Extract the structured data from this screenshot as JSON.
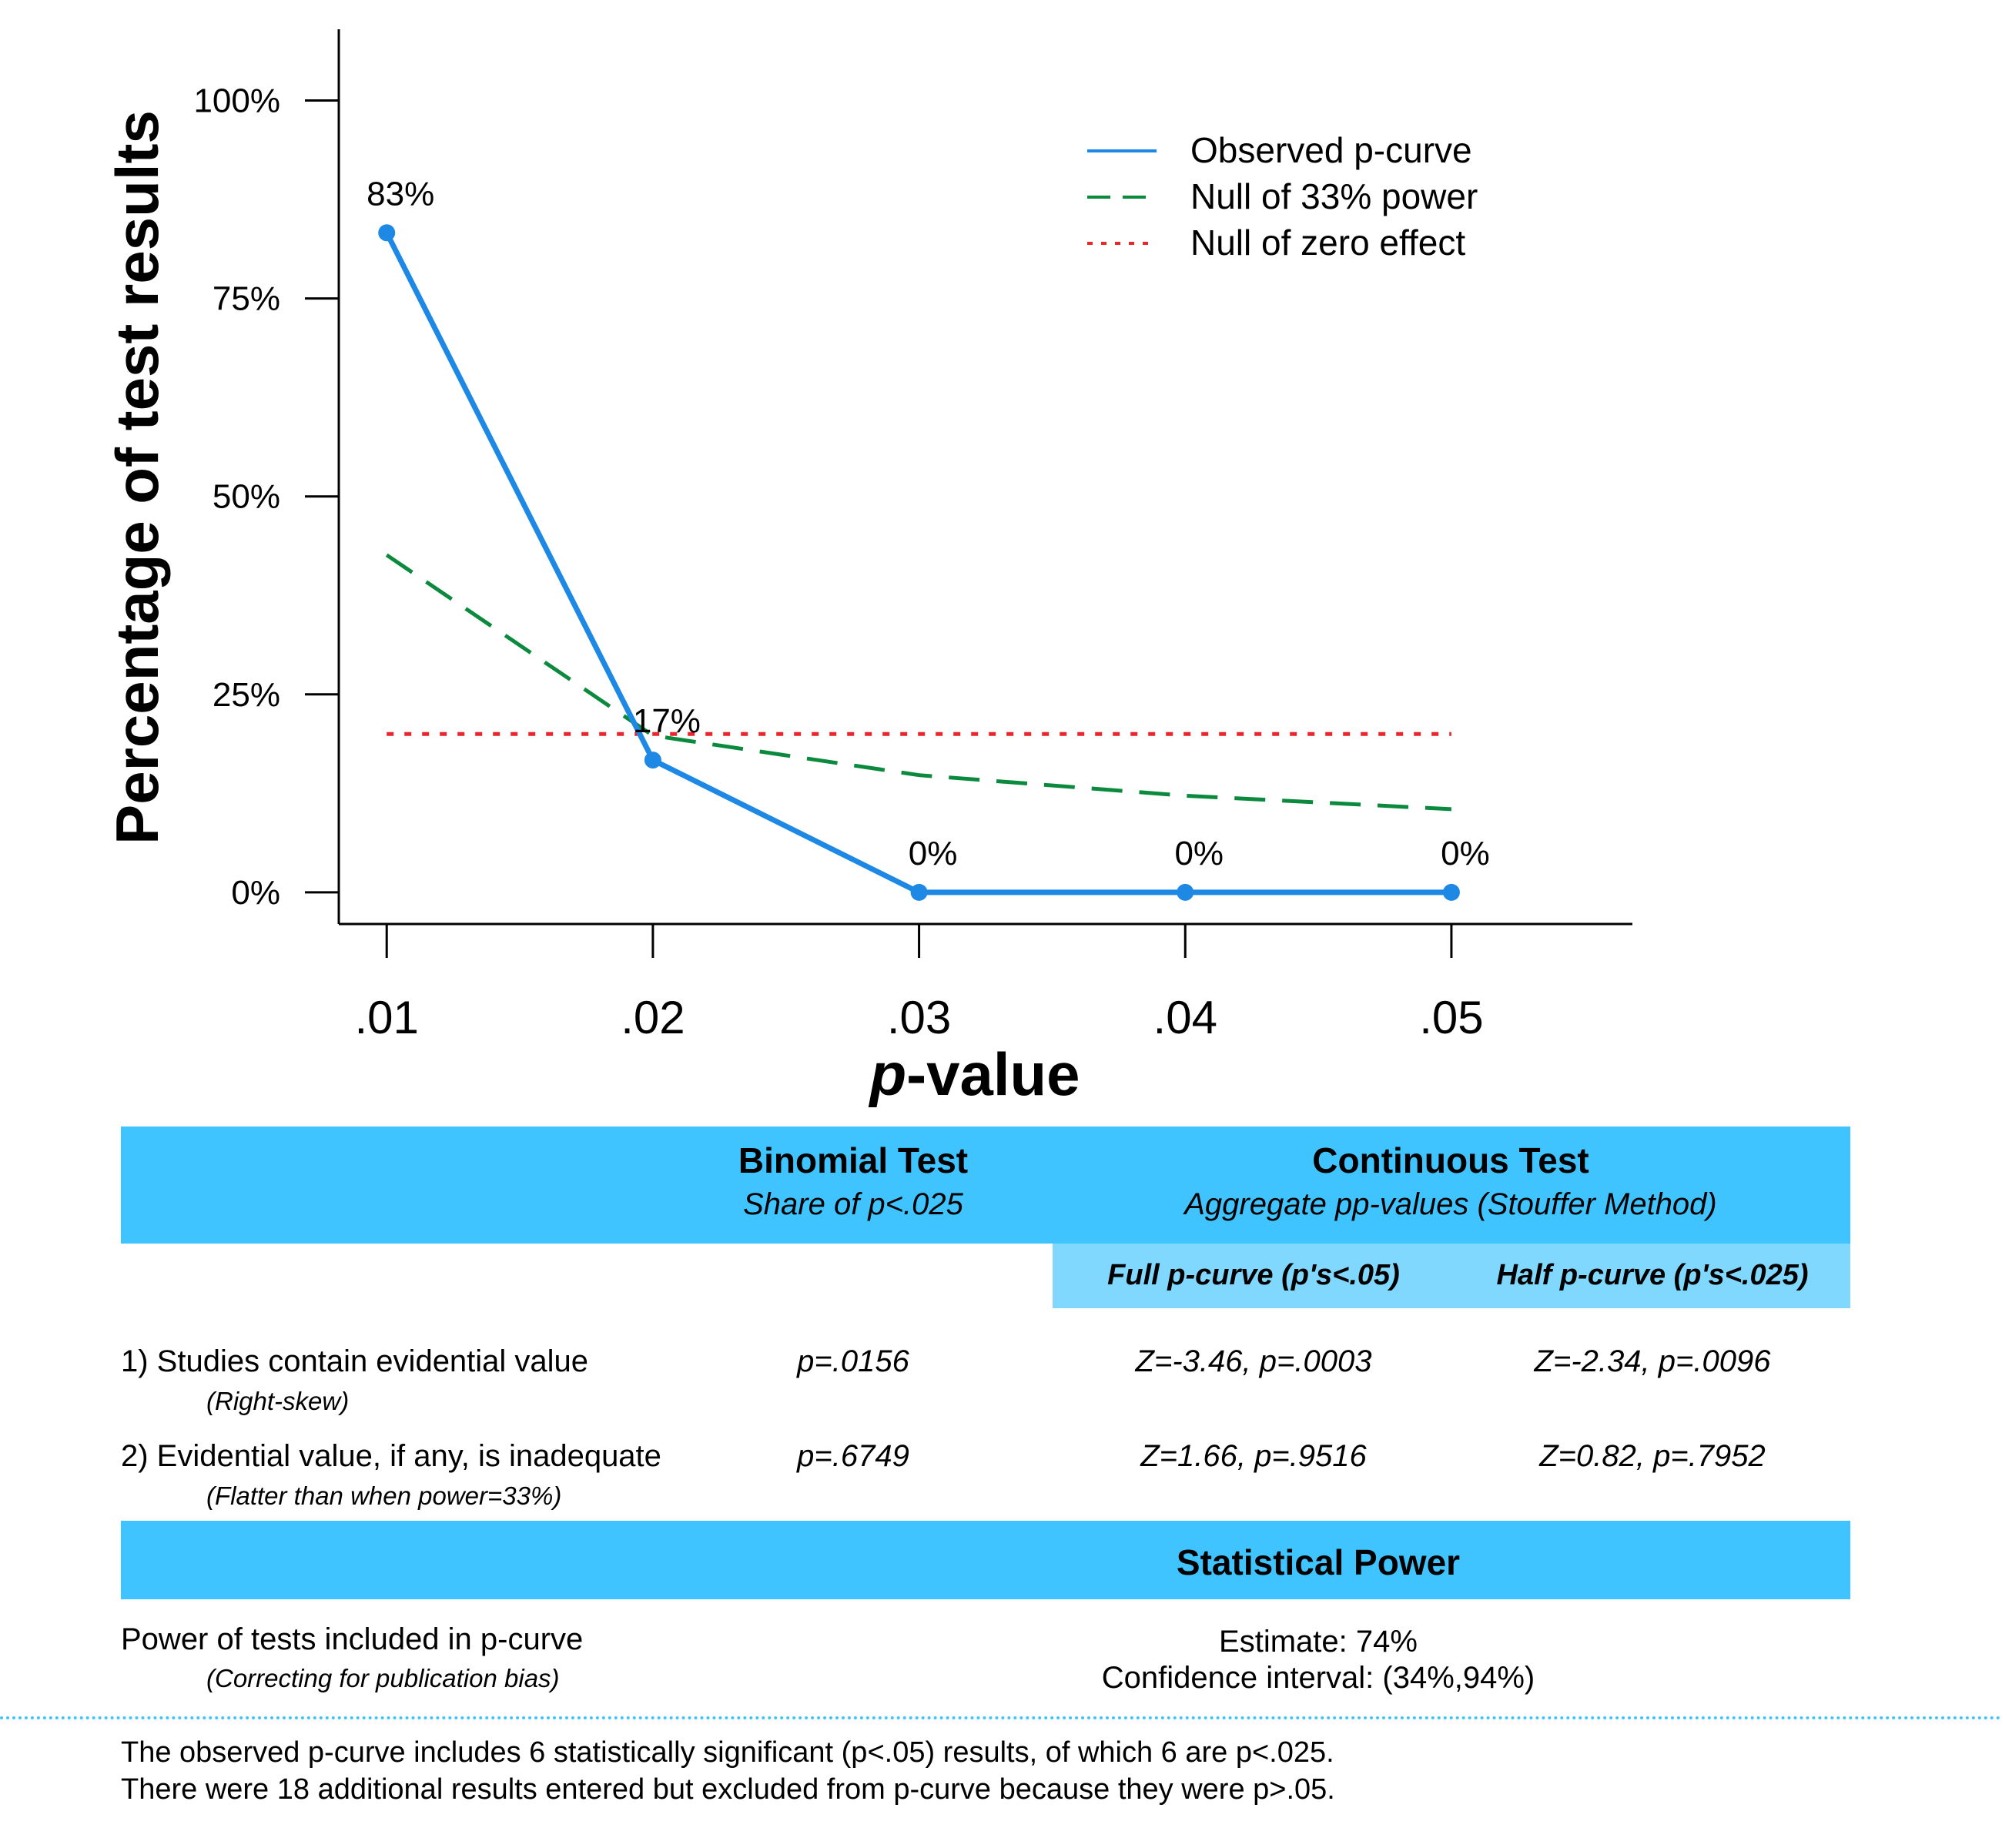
{
  "chart_data": {
    "type": "line",
    "ylabel": "Percentage of test results",
    "xlabel_italic": "p",
    "xlabel_rest": "-value",
    "x": [
      0.01,
      0.02,
      0.03,
      0.04,
      0.05
    ],
    "x_tick_labels": [
      ".01",
      ".02",
      ".03",
      ".04",
      ".05"
    ],
    "y_ticks": [
      0,
      25,
      50,
      75,
      100
    ],
    "y_tick_labels": [
      "0%",
      "25%",
      "50%",
      "75%",
      "100%"
    ],
    "ylim": [
      -4,
      109
    ],
    "xlim": [
      0.0082,
      0.0568
    ],
    "grid": false,
    "legend_position": "top-right",
    "series": [
      {
        "name": "Observed p-curve",
        "values": [
          83.3,
          16.7,
          0,
          0,
          0
        ],
        "point_labels": [
          "83%",
          "17%",
          "0%",
          "0%",
          "0%"
        ],
        "color": "#1E88E5",
        "style": "solid",
        "markers": true
      },
      {
        "name": "Null of 33% power",
        "values": [
          42.6,
          19.8,
          14.8,
          12.2,
          10.5
        ],
        "color": "#0B8A3E",
        "style": "dashed",
        "markers": false
      },
      {
        "name": "Null of zero effect",
        "values": [
          20,
          20,
          20,
          20,
          20
        ],
        "color": "#E8262B",
        "style": "dotted",
        "markers": false
      }
    ]
  },
  "table": {
    "binomial_title": "Binomial Test",
    "binomial_sub": "Share of p<.025",
    "continuous_title": "Continuous Test",
    "continuous_sub": "Aggregate pp-values (Stouffer Method)",
    "full_header": "Full p-curve (p's<.05)",
    "half_header": "Half p-curve (p's<.025)",
    "rows": [
      {
        "label": "1) Studies contain evidential value",
        "note": "(Right-skew)",
        "binomial": "p=.0156",
        "full": "Z=-3.46, p=.0003",
        "half": "Z=-2.34, p=.0096"
      },
      {
        "label": "2) Evidential value, if any, is inadequate",
        "note": "(Flatter than when power=33%)",
        "binomial": "p=.6749",
        "full": "Z=1.66, p=.9516",
        "half": "Z=0.82, p=.7952"
      }
    ],
    "power_title": "Statistical Power",
    "power_label": "Power of tests included in p-curve",
    "power_note": "(Correcting for publication bias)",
    "power_estimate": "Estimate: 74%",
    "power_ci": "Confidence interval: (34%,94%)"
  },
  "footer": {
    "line1": "The observed p-curve includes 6 statistically significant (p<.05) results, of which 6 are p<.025.",
    "line2": "There were 18 additional results entered but excluded from p-curve because they were p>.05."
  },
  "colors": {
    "header_band": "#40C4FF",
    "subheader_band": "#80D8FF"
  }
}
